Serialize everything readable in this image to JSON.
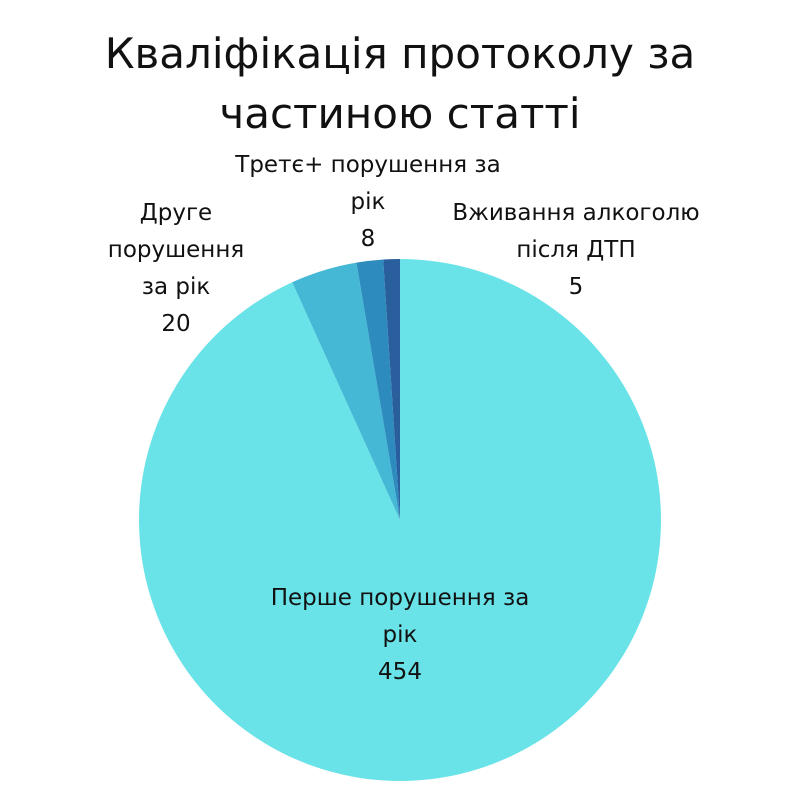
{
  "chart_data": {
    "type": "pie",
    "title": "Кваліфікація протоколу за частиною статті",
    "categories": [
      "Перше порушення за рік",
      "Друге порушення за рік",
      "Третє+ порушення за рік",
      "Вживання алкоголю після ДТП"
    ],
    "values": [
      454,
      20,
      8,
      5
    ],
    "colors": [
      "#6ae3e8",
      "#45b8d6",
      "#2e8bbd",
      "#2a5f9e"
    ]
  }
}
